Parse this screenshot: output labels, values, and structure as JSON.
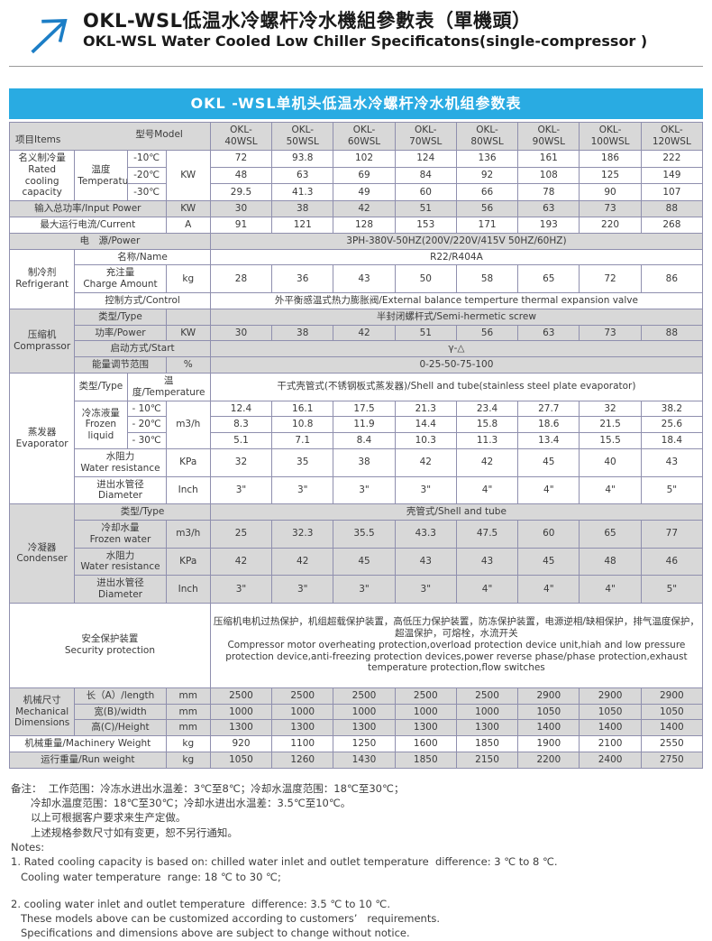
{
  "header": {
    "logo_icon": "arrow-up-right-icon",
    "title_zh": "OKL-WSL低温水冷螺杆冷水機組參數表（單機頭）",
    "title_en": "OKL-WSL Water Cooled Low Chiller Specificatons(single-compressor )"
  },
  "colors": {
    "banner_blue": "#29ABE2",
    "row_gray": "#D8D8D8",
    "row_white": "#FFFFFF",
    "table_border": "#8F8FAE",
    "logo_arrow_blue": "#1C7EC6"
  },
  "table": {
    "banner": "OKL -WSL单机头低温水冷螺杆冷水机组参数表",
    "rows": [
      {
        "bg": "g",
        "cells": [
          {
            "corner": [
              "项目Items",
              "型号Model"
            ],
            "c": 4,
            "name": "corner-items-model"
          },
          {
            "t": [
              "OKL-",
              "40WSL"
            ],
            "cls": "hmodel",
            "name": "model-okl-40wsl"
          },
          {
            "t": [
              "OKL-",
              "50WSL"
            ],
            "cls": "hmodel",
            "name": "model-okl-50wsl"
          },
          {
            "t": [
              "OKL-",
              "60WSL"
            ],
            "cls": "hmodel",
            "name": "model-okl-60wsl"
          },
          {
            "t": [
              "OKL-",
              "70WSL"
            ],
            "cls": "hmodel",
            "name": "model-okl-70wsl"
          },
          {
            "t": [
              "OKL-",
              "80WSL"
            ],
            "cls": "hmodel",
            "name": "model-okl-80wsl"
          },
          {
            "t": [
              "OKL-",
              "90WSL"
            ],
            "cls": "hmodel",
            "name": "model-okl-90wsl"
          },
          {
            "t": [
              "OKL-",
              "100WSL"
            ],
            "cls": "hmodel",
            "name": "model-okl-100wsl"
          },
          {
            "t": [
              "OKL-",
              "120WSL"
            ],
            "cls": "hmodel",
            "name": "model-okl-120wsl"
          }
        ]
      },
      {
        "bg": "w",
        "cells": [
          {
            "t": [
              "名义制冷量",
              "Rated cooling",
              "capacity"
            ],
            "r": 3,
            "name": "section-rated-cooling-capacity"
          },
          {
            "t": [
              "温度",
              "Temperature"
            ],
            "r": 3,
            "name": "label-temperature"
          },
          {
            "t": "-10℃"
          },
          {
            "t": "KW",
            "r": 3,
            "name": "unit-cell"
          },
          "72",
          "93.8",
          "102",
          "124",
          "136",
          "161",
          "186",
          "222"
        ]
      },
      {
        "bg": "w",
        "cells": [
          {
            "t": "-20℃"
          },
          "48",
          "63",
          "69",
          "84",
          "92",
          "108",
          "125",
          "149"
        ]
      },
      {
        "bg": "w",
        "cells": [
          {
            "t": "-30℃"
          },
          "29.5",
          "41.3",
          "49",
          "60",
          "66",
          "78",
          "90",
          "107"
        ]
      },
      {
        "bg": "g",
        "cells": [
          {
            "t": "输入总功率/Input Power",
            "c": 3,
            "name": "row-input-power"
          },
          {
            "t": "KW",
            "name": "unit-cell"
          },
          "30",
          "38",
          "42",
          "51",
          "56",
          "63",
          "73",
          "88"
        ]
      },
      {
        "bg": "w",
        "cells": [
          {
            "t": "最大运行电流/Current",
            "c": 3,
            "name": "row-max-current"
          },
          {
            "t": "A",
            "name": "unit-cell"
          },
          "91",
          "121",
          "128",
          "153",
          "171",
          "193",
          "220",
          "268"
        ]
      },
      {
        "bg": "g",
        "cells": [
          {
            "t": "电　源/Power",
            "c": 4,
            "name": "row-power-supply"
          },
          {
            "t": "3PH-380V-50HZ(200V/220V/415V  50HZ/60HZ)",
            "c": 8
          }
        ]
      },
      {
        "bg": "w",
        "cells": [
          {
            "t": [
              "制冷剂",
              "Refrigerant"
            ],
            "r": 3,
            "name": "section-refrigerant"
          },
          {
            "t": "名称/Name",
            "c": 3
          },
          {
            "t": "R22/R404A",
            "c": 8
          }
        ]
      },
      {
        "bg": "w",
        "cells": [
          {
            "t": [
              "充注量",
              "Charge Amount"
            ],
            "c": 2
          },
          {
            "t": "kg",
            "name": "unit-cell"
          },
          "28",
          "36",
          "43",
          "50",
          "58",
          "65",
          "72",
          "86"
        ]
      },
      {
        "bg": "w",
        "cells": [
          {
            "t": "控制方式/Control",
            "c": 3
          },
          {
            "t": "外平衡感温式热力膨胀阀/External balance temperture thermal expansion valve",
            "c": 8
          }
        ]
      },
      {
        "bg": "g",
        "cells": [
          {
            "t": [
              "压缩机",
              "Comprassor"
            ],
            "r": 4,
            "name": "section-compressor"
          },
          {
            "t": "类型/Type",
            "c": 2
          },
          {
            "t": ""
          },
          {
            "t": "半封闭螺杆式/Semi-hermetic screw",
            "c": 8
          }
        ]
      },
      {
        "bg": "g",
        "cells": [
          {
            "t": "功率/Power",
            "c": 2
          },
          {
            "t": "KW",
            "name": "unit-cell"
          },
          "30",
          "38",
          "42",
          "51",
          "56",
          "63",
          "73",
          "88"
        ]
      },
      {
        "bg": "g",
        "cells": [
          {
            "t": "启动方式/Start",
            "c": 3
          },
          {
            "t": "γ-△",
            "c": 8
          }
        ]
      },
      {
        "bg": "g",
        "cells": [
          {
            "t": "能量调节范围",
            "c": 2
          },
          {
            "t": "%",
            "name": "unit-cell"
          },
          {
            "t": "0-25-50-75-100",
            "c": 8
          }
        ]
      },
      {
        "bg": "w",
        "cells": [
          {
            "t": [
              "蒸发器",
              "Evaporator"
            ],
            "r": 6,
            "name": "section-evaporator"
          },
          {
            "t": "类型/Type"
          },
          {
            "t": "温度/Temperature",
            "c": 2
          },
          {
            "t": "干式壳管式(不锈钢板式蒸发器)/Shell and tube(stainless steel plate evaporator)",
            "c": 8
          }
        ]
      },
      {
        "bg": "w",
        "cells": [
          {
            "t": [
              "冷冻液量",
              "Frozen liquid"
            ],
            "r": 3
          },
          {
            "t": "- 10℃"
          },
          {
            "t": "m3/h",
            "r": 3,
            "name": "unit-cell"
          },
          "12.4",
          "16.1",
          "17.5",
          "21.3",
          "23.4",
          "27.7",
          "32",
          "38.2"
        ]
      },
      {
        "bg": "w",
        "cells": [
          {
            "t": "- 20℃"
          },
          "8.3",
          "10.8",
          "11.9",
          "14.4",
          "15.8",
          "18.6",
          "21.5",
          "25.6"
        ]
      },
      {
        "bg": "w",
        "cells": [
          {
            "t": "- 30℃"
          },
          "5.1",
          "7.1",
          "8.4",
          "10.3",
          "11.3",
          "13.4",
          "15.5",
          "18.4"
        ]
      },
      {
        "bg": "w",
        "cells": [
          {
            "t": [
              "水阻力",
              "Water resistance"
            ],
            "c": 2
          },
          {
            "t": "KPa",
            "name": "unit-cell"
          },
          "32",
          "35",
          "38",
          "42",
          "42",
          "45",
          "40",
          "43"
        ]
      },
      {
        "bg": "w",
        "cells": [
          {
            "t": [
              "进出水管径",
              "Diameter"
            ],
            "c": 2
          },
          {
            "t": "Inch",
            "name": "unit-cell"
          },
          "3\"",
          "3\"",
          "3\"",
          "3\"",
          "4\"",
          "4\"",
          "4\"",
          "5\""
        ]
      },
      {
        "bg": "g",
        "cells": [
          {
            "t": [
              "冷凝器",
              "Condenser"
            ],
            "r": 4,
            "name": "section-condenser"
          },
          {
            "t": "类型/Type",
            "c": 3
          },
          {
            "t": "壳管式/Shell and tube",
            "c": 8
          }
        ]
      },
      {
        "bg": "g",
        "cells": [
          {
            "t": [
              "冷却水量",
              "Frozen water"
            ],
            "c": 2
          },
          {
            "t": "m3/h",
            "name": "unit-cell"
          },
          "25",
          "32.3",
          "35.5",
          "43.3",
          "47.5",
          "60",
          "65",
          "77"
        ]
      },
      {
        "bg": "g",
        "cells": [
          {
            "t": [
              "水阻力",
              "Water resistance"
            ],
            "c": 2
          },
          {
            "t": "KPa",
            "name": "unit-cell"
          },
          "42",
          "42",
          "45",
          "43",
          "43",
          "45",
          "48",
          "46"
        ]
      },
      {
        "bg": "g",
        "cells": [
          {
            "t": [
              "进出水管径",
              "Diameter"
            ],
            "c": 2
          },
          {
            "t": "Inch",
            "name": "unit-cell"
          },
          "3\"",
          "3\"",
          "3\"",
          "3\"",
          "4\"",
          "4\"",
          "4\"",
          "5\""
        ]
      },
      {
        "bg": "w",
        "cells": [
          {
            "t": [
              "安全保护装置",
              "Security protection"
            ],
            "c": 4,
            "name": "section-security-protection"
          },
          {
            "t": [
              "压缩机电机过热保护，机组超载保护装置，高低压力保护装置，防冻保护装置，电源逆相/缺相保护，排气温度保护，超温保护，可熔栓，水流开关",
              "Compressor motor overheating protection,overload protection device unit,hiah and low pressure protection device,anti-freezing protection devices,power reverse phase/phase protection,exhaust temperature protection,flow switches"
            ],
            "c": 8,
            "cls": "left tall"
          }
        ]
      },
      {
        "bg": "g",
        "cells": [
          {
            "t": [
              "机械尺寸",
              "Mechanical",
              "Dimensions"
            ],
            "r": 3,
            "name": "section-mechanical-dimensions"
          },
          {
            "t": "长（A）/length",
            "c": 2
          },
          {
            "t": "mm",
            "name": "unit-cell"
          },
          "2500",
          "2500",
          "2500",
          "2500",
          "2500",
          "2900",
          "2900",
          "2900"
        ]
      },
      {
        "bg": "g",
        "cells": [
          {
            "t": "宽(B)/width",
            "c": 2
          },
          {
            "t": "mm",
            "name": "unit-cell"
          },
          "1000",
          "1000",
          "1000",
          "1000",
          "1000",
          "1050",
          "1050",
          "1050"
        ]
      },
      {
        "bg": "g",
        "cells": [
          {
            "t": "高(C)/Height",
            "c": 2
          },
          {
            "t": "mm",
            "name": "unit-cell"
          },
          "1300",
          "1300",
          "1300",
          "1300",
          "1300",
          "1400",
          "1400",
          "1400"
        ]
      },
      {
        "bg": "w",
        "cells": [
          {
            "t": "机械重量/Machinery Weight",
            "c": 3,
            "name": "row-machinery-weight"
          },
          {
            "t": "kg",
            "name": "unit-cell"
          },
          "920",
          "1100",
          "1250",
          "1600",
          "1850",
          "1900",
          "2100",
          "2550"
        ]
      },
      {
        "bg": "g",
        "cells": [
          {
            "t": "运行重量/Run weight",
            "c": 3,
            "name": "row-run-weight"
          },
          {
            "t": "kg",
            "name": "unit-cell"
          },
          "1050",
          "1260",
          "1430",
          "1850",
          "2150",
          "2200",
          "2400",
          "2750"
        ]
      }
    ]
  },
  "notes": [
    "备注：  工作范围：冷冻水进出水温差：3℃至8℃；冷却水温度范围：18℃至30℃；",
    "      冷却水温度范围：18℃至30℃；冷却水进出水温差：3.5℃至10℃。",
    "      以上可根据客户要求来生产定做。",
    "      上述规格参数尺寸如有变更，恕不另行通知。",
    "Notes:",
    "1. Rated cooling capacity is based on: chilled water inlet and outlet temperature  difference: 3 ℃ to 8 ℃.",
    "   Cooling water temperature  range: 18 ℃ to 30 ℃;",
    "",
    "2. cooling water inlet and outlet temperature  difference: 3.5 ℃ to 10 ℃.",
    "   These models above can be customized according to customers’   requirements.",
    "   Specifications and dimensions above are subject to change without notice."
  ]
}
